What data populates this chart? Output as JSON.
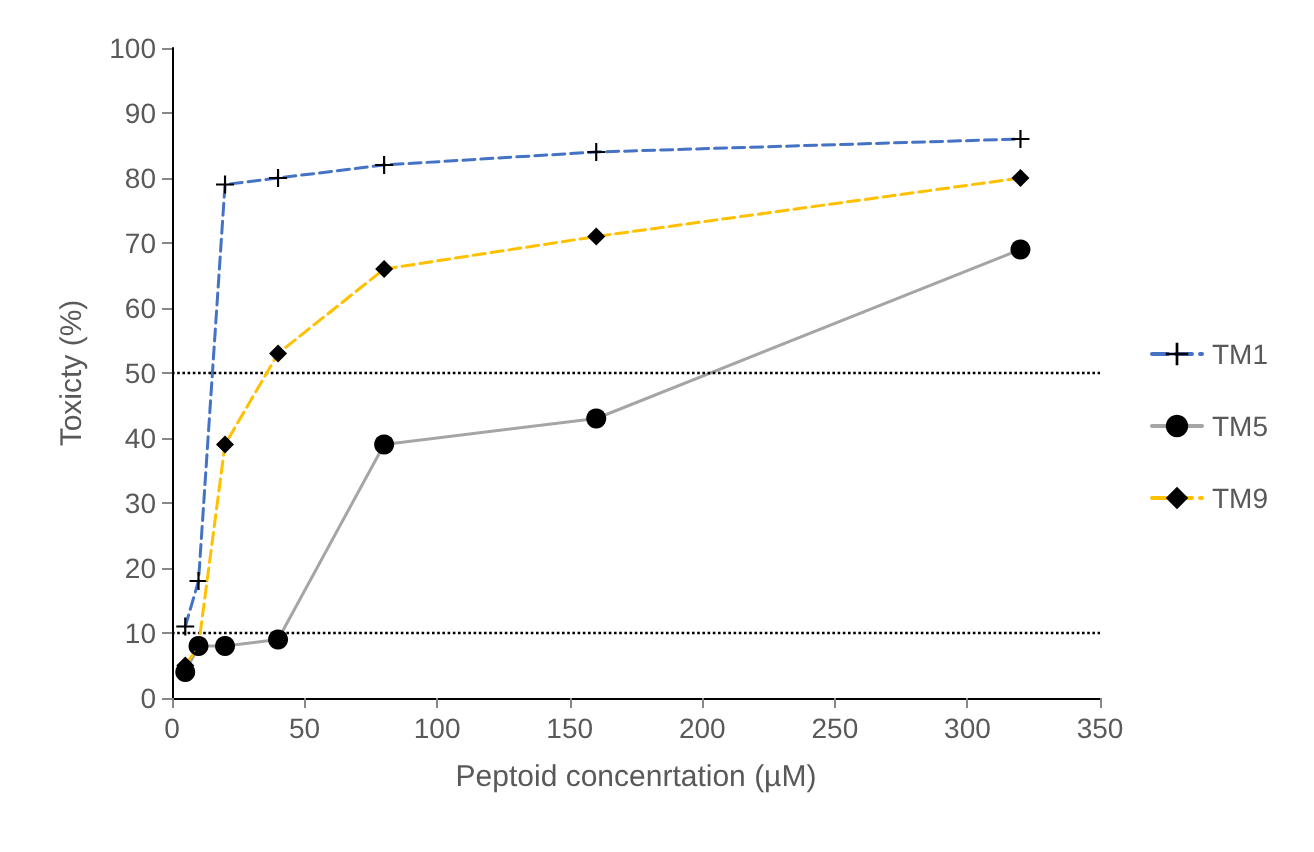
{
  "chart_data": {
    "type": "line",
    "xlabel": "Peptoid concenrtation (µM)",
    "ylabel": "Toxicty (%)",
    "x": [
      5,
      10,
      20,
      40,
      80,
      160,
      320
    ],
    "series": [
      {
        "name": "TM1",
        "color": "#4472c4",
        "line_style": "dashed",
        "marker": "cross",
        "values": [
          11,
          18,
          79,
          80,
          82,
          84,
          86
        ]
      },
      {
        "name": "TM5",
        "color": "#a5a5a5",
        "line_style": "solid",
        "marker": "circle",
        "values": [
          4,
          8,
          8,
          9,
          39,
          43,
          69
        ]
      },
      {
        "name": "TM9",
        "color": "#ffc000",
        "line_style": "dashed",
        "marker": "diamond",
        "values": [
          5,
          8,
          39,
          53,
          66,
          71,
          80
        ]
      }
    ],
    "xlim": [
      0,
      350
    ],
    "xticks": [
      0,
      50,
      100,
      150,
      200,
      250,
      300,
      350
    ],
    "ylim": [
      0,
      100
    ],
    "yticks": [
      0,
      10,
      20,
      30,
      40,
      50,
      60,
      70,
      80,
      90,
      100
    ],
    "ref_lines": [
      {
        "axis": "y",
        "value": 50,
        "color": "#000000",
        "line_style": "dotted"
      },
      {
        "axis": "y",
        "value": 10,
        "color": "#000000",
        "line_style": "dotted"
      }
    ],
    "grid": false,
    "legend": "right"
  }
}
